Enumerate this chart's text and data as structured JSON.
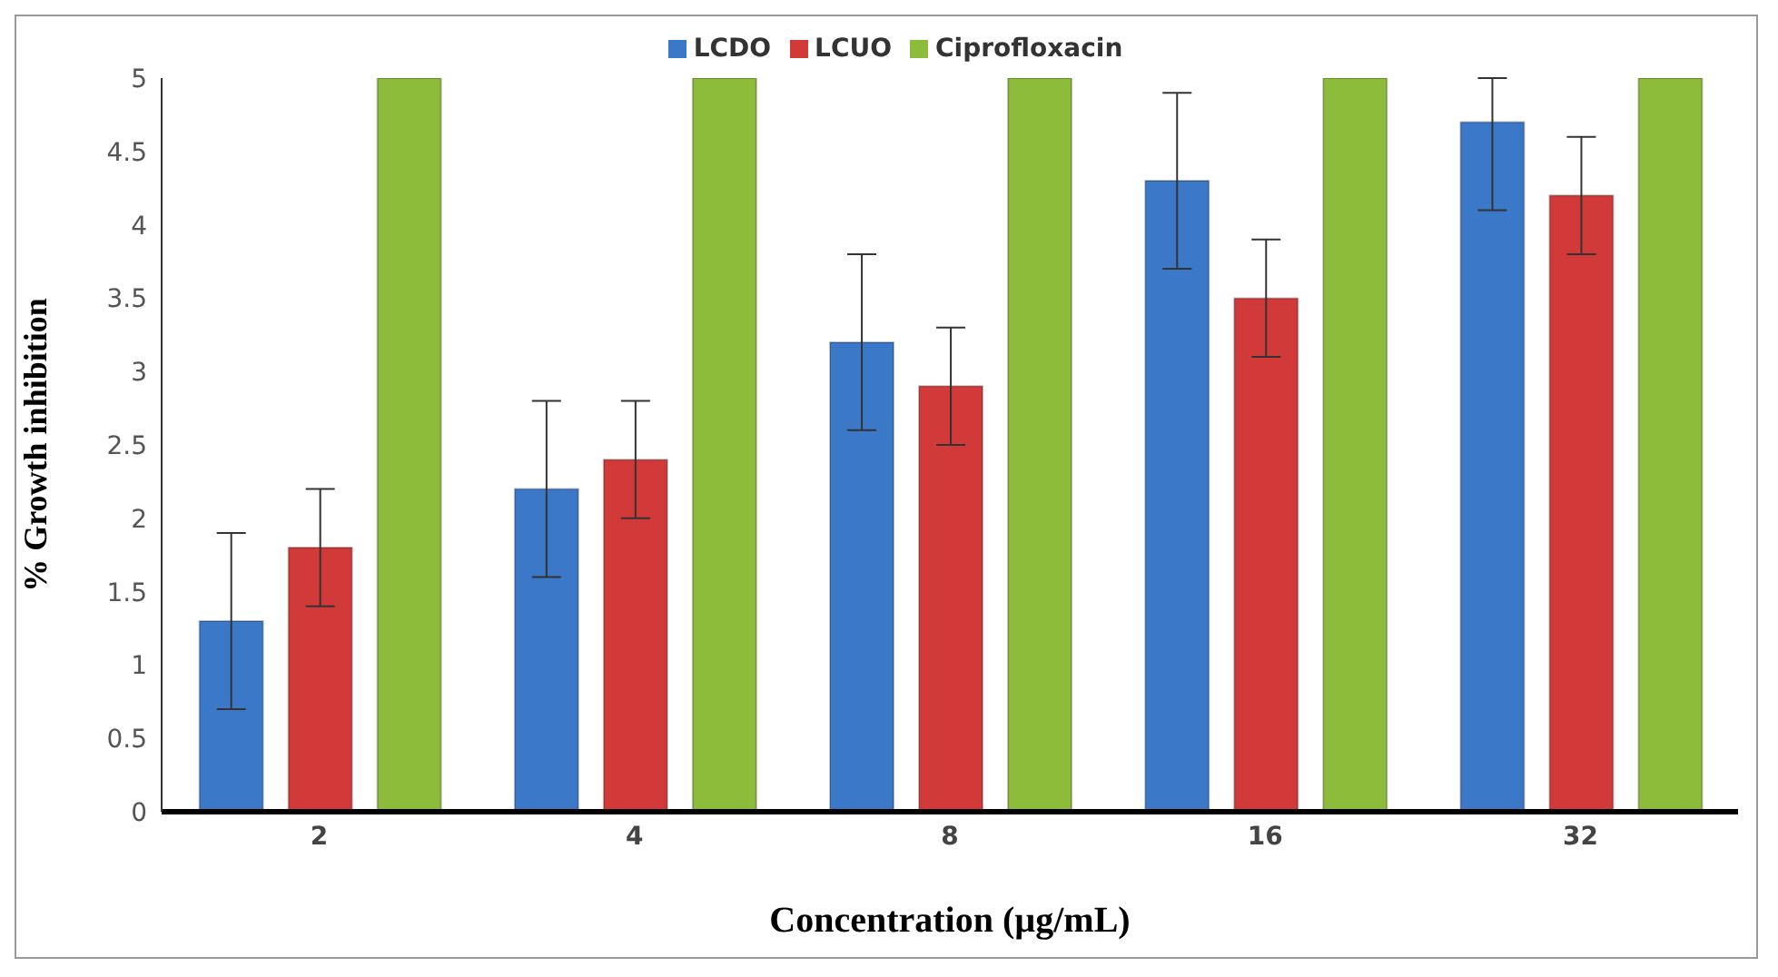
{
  "chart_data": {
    "type": "bar",
    "xlabel": "Concentration (µg/mL)",
    "ylabel": "% Growth inhibition",
    "categories": [
      "2",
      "4",
      "8",
      "16",
      "32"
    ],
    "series": [
      {
        "name": "LCDO",
        "color": "#3b78c8",
        "values": [
          1.3,
          2.2,
          3.2,
          4.3,
          4.7
        ],
        "errors": [
          0.6,
          0.6,
          0.6,
          0.6,
          [
            4.1,
            5
          ]
        ]
      },
      {
        "name": "LCUO",
        "color": "#d23a3a",
        "values": [
          1.8,
          2.4,
          2.9,
          3.5,
          4.2
        ],
        "errors": [
          0.4,
          0.4,
          0.4,
          0.4,
          0.4
        ]
      },
      {
        "name": "Ciprofloxacin",
        "color": "#8dbb3a",
        "values": [
          5,
          5,
          5,
          5,
          5
        ]
      }
    ],
    "ylim": [
      0,
      5
    ],
    "yticks": [
      0,
      0.5,
      1,
      1.5,
      2,
      2.5,
      3,
      3.5,
      4,
      4.5,
      5
    ],
    "grid": false,
    "legend": "top"
  }
}
